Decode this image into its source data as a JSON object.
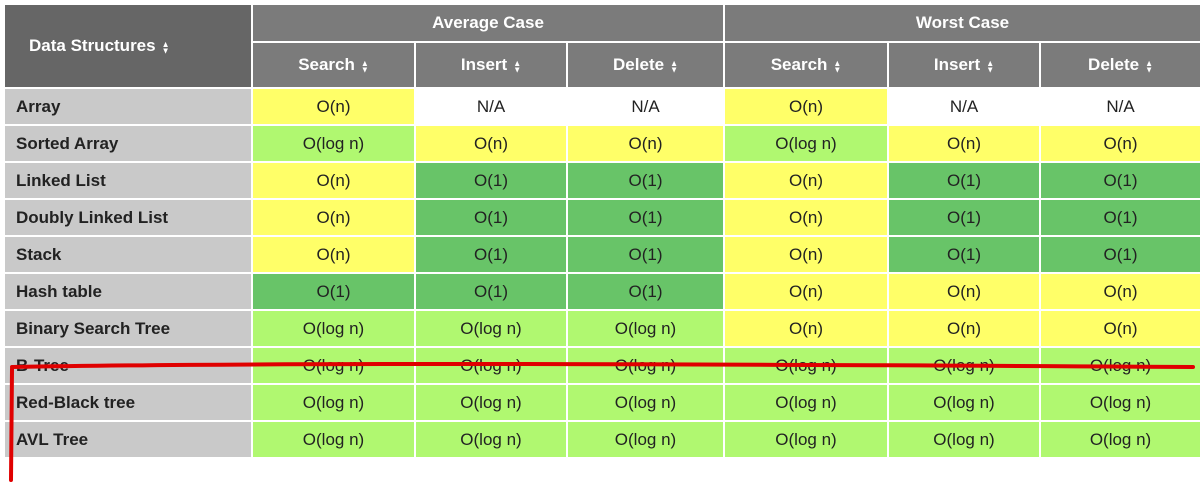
{
  "header": {
    "corner": "Data Structures",
    "groups": [
      "Average Case",
      "Worst Case"
    ],
    "columns": [
      "Search",
      "Insert",
      "Delete",
      "Search",
      "Insert",
      "Delete"
    ]
  },
  "rows": [
    {
      "name": "Array",
      "cells": [
        "O(n)",
        "N/A",
        "N/A",
        "O(n)",
        "N/A",
        "N/A"
      ],
      "colors": [
        "y",
        "w",
        "w",
        "y",
        "w",
        "w"
      ]
    },
    {
      "name": "Sorted Array",
      "cells": [
        "O(log n)",
        "O(n)",
        "O(n)",
        "O(log n)",
        "O(n)",
        "O(n)"
      ],
      "colors": [
        "g",
        "y",
        "y",
        "g",
        "y",
        "y"
      ]
    },
    {
      "name": "Linked List",
      "cells": [
        "O(n)",
        "O(1)",
        "O(1)",
        "O(n)",
        "O(1)",
        "O(1)"
      ],
      "colors": [
        "y",
        "d",
        "d",
        "y",
        "d",
        "d"
      ]
    },
    {
      "name": "Doubly Linked List",
      "cells": [
        "O(n)",
        "O(1)",
        "O(1)",
        "O(n)",
        "O(1)",
        "O(1)"
      ],
      "colors": [
        "y",
        "d",
        "d",
        "y",
        "d",
        "d"
      ]
    },
    {
      "name": "Stack",
      "cells": [
        "O(n)",
        "O(1)",
        "O(1)",
        "O(n)",
        "O(1)",
        "O(1)"
      ],
      "colors": [
        "y",
        "d",
        "d",
        "y",
        "d",
        "d"
      ]
    },
    {
      "name": "Hash table",
      "cells": [
        "O(1)",
        "O(1)",
        "O(1)",
        "O(n)",
        "O(n)",
        "O(n)"
      ],
      "colors": [
        "d",
        "d",
        "d",
        "y",
        "y",
        "y"
      ]
    },
    {
      "name": "Binary Search Tree",
      "cells": [
        "O(log n)",
        "O(log n)",
        "O(log n)",
        "O(n)",
        "O(n)",
        "O(n)"
      ],
      "colors": [
        "g",
        "g",
        "g",
        "y",
        "y",
        "y"
      ]
    },
    {
      "name": "B-Tree",
      "cells": [
        "O(log n)",
        "O(log n)",
        "O(log n)",
        "O(log n)",
        "O(log n)",
        "O(log n)"
      ],
      "colors": [
        "g",
        "g",
        "g",
        "g",
        "g",
        "g"
      ]
    },
    {
      "name": "Red-Black tree",
      "cells": [
        "O(log n)",
        "O(log n)",
        "O(log n)",
        "O(log n)",
        "O(log n)",
        "O(log n)"
      ],
      "colors": [
        "g",
        "g",
        "g",
        "g",
        "g",
        "g"
      ]
    },
    {
      "name": "AVL Tree",
      "cells": [
        "O(log n)",
        "O(log n)",
        "O(log n)",
        "O(log n)",
        "O(log n)",
        "O(log n)"
      ],
      "colors": [
        "g",
        "g",
        "g",
        "g",
        "g",
        "g"
      ]
    }
  ],
  "colors": {
    "header": "#7b7b7b",
    "corner": "#666666",
    "name_cell": "#c9c9c9",
    "light_green": "#b0f870",
    "dark_green": "#68c468",
    "yellow": "#ffff68",
    "white": "#ffffff",
    "annotation": "#e00000"
  },
  "icons": {
    "sort": "sort-icon"
  }
}
